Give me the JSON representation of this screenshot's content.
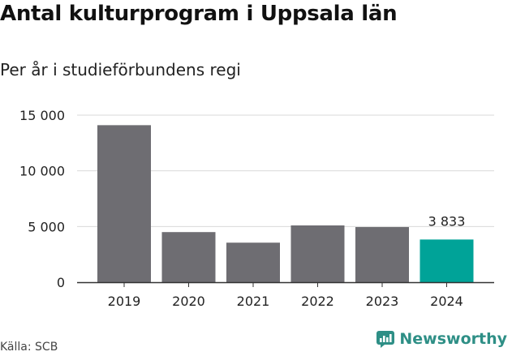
{
  "header": {
    "title": "Antal kulturprogram i Uppsala län",
    "subtitle": "Per år i studieförbundens regi"
  },
  "footer": {
    "source": "Källa: SCB",
    "brand": "Newsworthy"
  },
  "colors": {
    "bar": "#6e6d72",
    "highlight": "#00a398",
    "grid": "#d9d9d9",
    "axis": "#333333",
    "brand": "#2e8f86"
  },
  "chart_data": {
    "type": "bar",
    "title": "Antal kulturprogram i Uppsala län",
    "subtitle": "Per år i studieförbundens regi",
    "categories": [
      "2019",
      "2020",
      "2021",
      "2022",
      "2023",
      "2024"
    ],
    "values": [
      14100,
      4500,
      3550,
      5100,
      4950,
      3833
    ],
    "highlight_index": 5,
    "data_labels": [
      {
        "index": 5,
        "text": "3 833"
      }
    ],
    "ylim": [
      0,
      15000
    ],
    "yticks": [
      {
        "value": 0,
        "label": "0"
      },
      {
        "value": 5000,
        "label": "5 000"
      },
      {
        "value": 10000,
        "label": "10 000"
      },
      {
        "value": 15000,
        "label": "15 000"
      }
    ],
    "grid": true,
    "legend": "none",
    "xlabel": "",
    "ylabel": ""
  }
}
